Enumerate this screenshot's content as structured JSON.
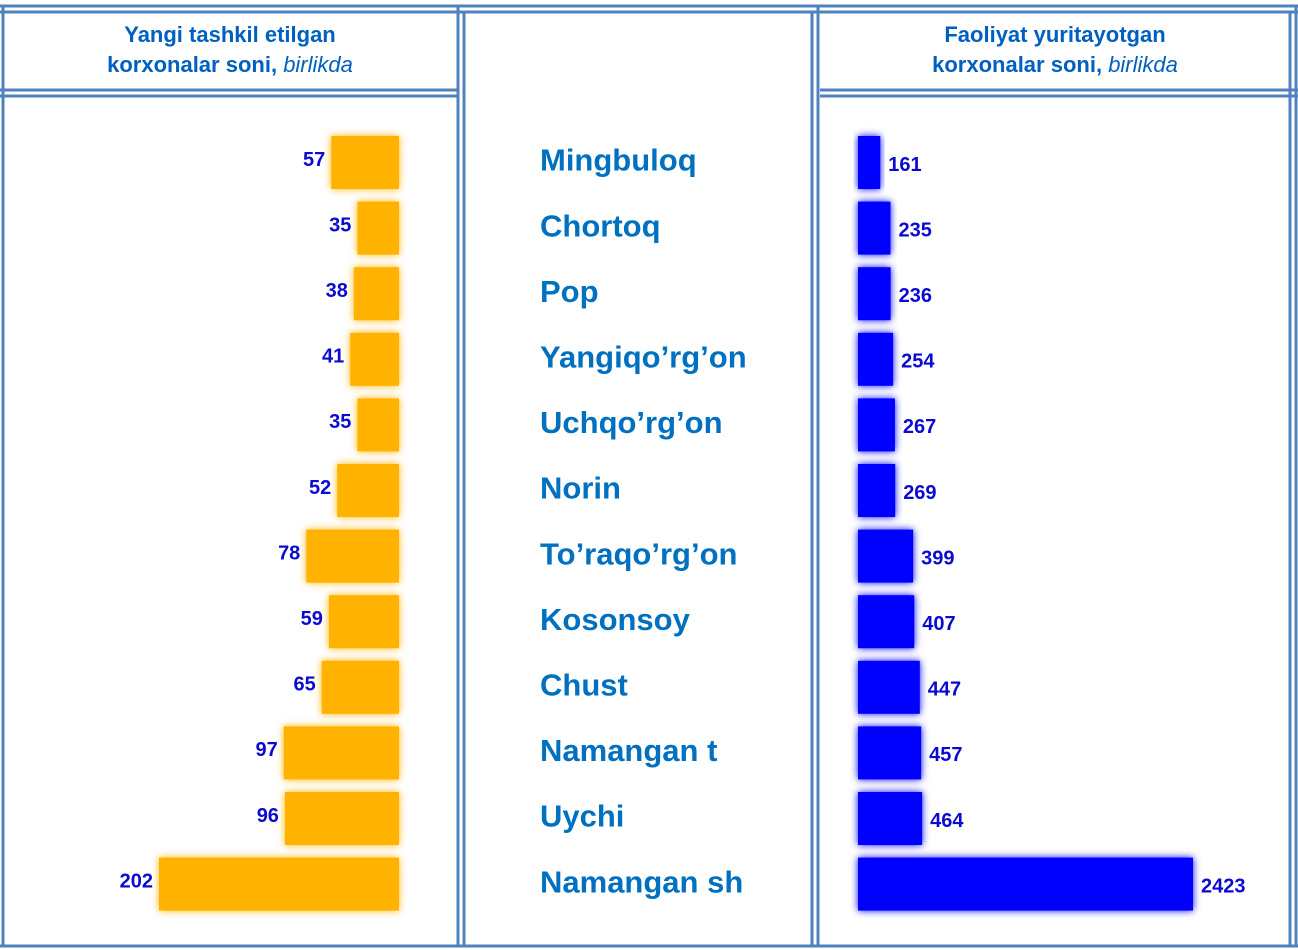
{
  "chart_data": {
    "type": "bar",
    "orientation": "horizontal",
    "categories": [
      "Mingbuloq",
      "Chortoq",
      "Pop",
      "Yangiqo’rg’on",
      "Uchqo’rg’on",
      "Norin",
      "To’raqo’rg’on",
      "Kosonsoy",
      "Chust",
      "Namangan t",
      "Uychi",
      "Namangan sh"
    ],
    "series": [
      {
        "name": "Yangi tashkil etilgan korxonalar soni,",
        "unit": "birlikda",
        "color": "#ffb300",
        "values": [
          57,
          35,
          38,
          41,
          35,
          52,
          78,
          59,
          65,
          97,
          96,
          202
        ]
      },
      {
        "name": "Faoliyat yuritayotgan korxonalar soni,",
        "unit": "birlikda",
        "color": "#0000ff",
        "values": [
          161,
          235,
          236,
          254,
          267,
          269,
          399,
          407,
          447,
          457,
          464,
          2423
        ]
      }
    ]
  }
}
